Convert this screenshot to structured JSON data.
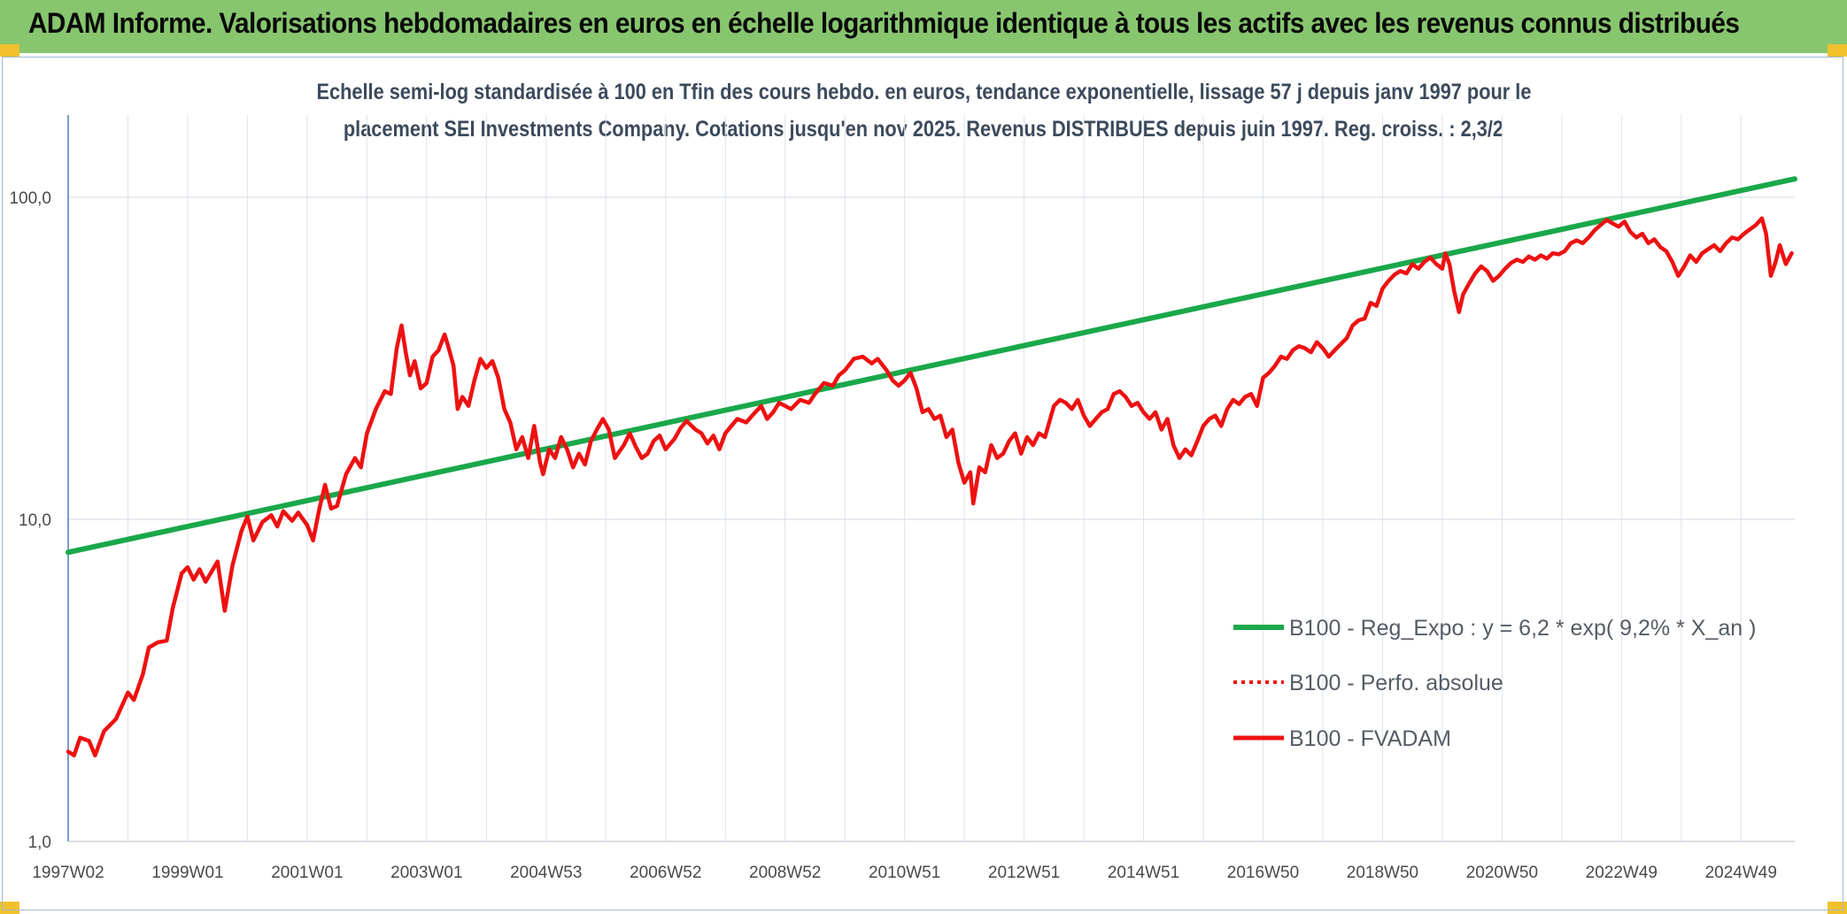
{
  "header": {
    "title": "ADAM Informe. Valorisations hebdomadaires en euros en échelle logarithmique identique à tous les actifs avec les revenus connus distribués"
  },
  "chart_data": {
    "type": "line",
    "title_line1": "Echelle semi-log standardisée à 100 en Tfin des cours hebdo. en euros, tendance exponentielle, lissage 57 j depuis janv 1997 pour le",
    "title_line2": "placement SEI Investments Company. Cotations jusqu'en nov 2025. Revenus DISTRIBUES depuis juin 1997. Reg. croiss. : 2,3/2",
    "y_scale": "log",
    "ylim": [
      1,
      180
    ],
    "xlim": [
      1997.0,
      2025.9
    ],
    "grid": true,
    "legend_position": "right",
    "x_tick_labels": [
      {
        "label": "1997W02",
        "year": 1997.0
      },
      {
        "label": "1999W01",
        "year": 1999.0
      },
      {
        "label": "2001W01",
        "year": 2001.0
      },
      {
        "label": "2003W01",
        "year": 2003.0
      },
      {
        "label": "2004W53",
        "year": 2005.0
      },
      {
        "label": "2006W52",
        "year": 2007.0
      },
      {
        "label": "2008W52",
        "year": 2009.0
      },
      {
        "label": "2010W51",
        "year": 2011.0
      },
      {
        "label": "2012W51",
        "year": 2013.0
      },
      {
        "label": "2014W51",
        "year": 2015.0
      },
      {
        "label": "2016W50",
        "year": 2017.0
      },
      {
        "label": "2018W50",
        "year": 2019.0
      },
      {
        "label": "2020W50",
        "year": 2021.0
      },
      {
        "label": "2022W49",
        "year": 2023.0
      },
      {
        "label": "2024W49",
        "year": 2025.0
      }
    ],
    "y_tick_labels": [
      {
        "label": "1,0",
        "value": 1
      },
      {
        "label": "10,0",
        "value": 10
      },
      {
        "label": "100,0",
        "value": 100
      }
    ],
    "series": [
      {
        "name": "B100 - Reg_Expo : y = 6,2 * exp( 9,2% *  X_an )",
        "color": "#1aa84a",
        "style": "solid",
        "points": [
          [
            1997.0,
            7.9
          ],
          [
            2025.9,
            114
          ]
        ]
      },
      {
        "name": "B100 - Perfo. absolue",
        "color": "#ee1111",
        "style": "dotted",
        "points": []
      },
      {
        "name": "B100 - FVADAM",
        "color": "#ee1111",
        "style": "solid",
        "points": [
          [
            1997.0,
            1.9
          ],
          [
            1997.1,
            1.85
          ],
          [
            1997.2,
            2.1
          ],
          [
            1997.35,
            2.05
          ],
          [
            1997.45,
            1.85
          ],
          [
            1997.6,
            2.2
          ],
          [
            1997.8,
            2.4
          ],
          [
            1998.0,
            2.9
          ],
          [
            1998.1,
            2.75
          ],
          [
            1998.25,
            3.3
          ],
          [
            1998.35,
            4.0
          ],
          [
            1998.5,
            4.15
          ],
          [
            1998.65,
            4.2
          ],
          [
            1998.75,
            5.3
          ],
          [
            1998.9,
            6.8
          ],
          [
            1999.0,
            7.1
          ],
          [
            1999.1,
            6.5
          ],
          [
            1999.2,
            7.0
          ],
          [
            1999.3,
            6.4
          ],
          [
            1999.5,
            7.4
          ],
          [
            1999.62,
            5.2
          ],
          [
            1999.75,
            7.2
          ],
          [
            1999.9,
            9.2
          ],
          [
            2000.0,
            10.2
          ],
          [
            2000.1,
            8.6
          ],
          [
            2000.25,
            9.8
          ],
          [
            2000.4,
            10.3
          ],
          [
            2000.5,
            9.5
          ],
          [
            2000.6,
            10.6
          ],
          [
            2000.75,
            9.9
          ],
          [
            2000.85,
            10.5
          ],
          [
            2001.0,
            9.6
          ],
          [
            2001.1,
            8.6
          ],
          [
            2001.2,
            10.7
          ],
          [
            2001.3,
            12.8
          ],
          [
            2001.4,
            10.8
          ],
          [
            2001.5,
            11.0
          ],
          [
            2001.65,
            13.8
          ],
          [
            2001.8,
            15.5
          ],
          [
            2001.9,
            14.5
          ],
          [
            2002.0,
            18.5
          ],
          [
            2002.15,
            22.0
          ],
          [
            2002.3,
            25.0
          ],
          [
            2002.4,
            24.5
          ],
          [
            2002.5,
            34.0
          ],
          [
            2002.58,
            40.0
          ],
          [
            2002.65,
            33.0
          ],
          [
            2002.72,
            28.0
          ],
          [
            2002.8,
            31.0
          ],
          [
            2002.9,
            25.5
          ],
          [
            2003.0,
            26.5
          ],
          [
            2003.1,
            32.0
          ],
          [
            2003.2,
            33.5
          ],
          [
            2003.3,
            37.5
          ],
          [
            2003.35,
            35.0
          ],
          [
            2003.45,
            30.0
          ],
          [
            2003.52,
            22.0
          ],
          [
            2003.6,
            24.0
          ],
          [
            2003.7,
            22.5
          ],
          [
            2003.8,
            27.0
          ],
          [
            2003.9,
            31.5
          ],
          [
            2004.0,
            29.5
          ],
          [
            2004.1,
            31.0
          ],
          [
            2004.2,
            27.5
          ],
          [
            2004.3,
            22.0
          ],
          [
            2004.4,
            20.0
          ],
          [
            2004.5,
            16.5
          ],
          [
            2004.6,
            18.0
          ],
          [
            2004.7,
            15.5
          ],
          [
            2004.8,
            19.5
          ],
          [
            2004.9,
            15.0
          ],
          [
            2004.95,
            13.8
          ],
          [
            2005.05,
            16.5
          ],
          [
            2005.15,
            15.5
          ],
          [
            2005.25,
            18.0
          ],
          [
            2005.35,
            16.5
          ],
          [
            2005.45,
            14.5
          ],
          [
            2005.55,
            16.0
          ],
          [
            2005.65,
            14.8
          ],
          [
            2005.75,
            17.5
          ],
          [
            2005.85,
            19.0
          ],
          [
            2005.95,
            20.5
          ],
          [
            2006.05,
            19.0
          ],
          [
            2006.15,
            15.5
          ],
          [
            2006.3,
            17.0
          ],
          [
            2006.4,
            18.5
          ],
          [
            2006.5,
            16.8
          ],
          [
            2006.6,
            15.5
          ],
          [
            2006.7,
            16.0
          ],
          [
            2006.8,
            17.5
          ],
          [
            2006.9,
            18.2
          ],
          [
            2007.0,
            16.5
          ],
          [
            2007.15,
            17.8
          ],
          [
            2007.25,
            19.2
          ],
          [
            2007.35,
            20.2
          ],
          [
            2007.5,
            19.0
          ],
          [
            2007.6,
            18.5
          ],
          [
            2007.7,
            17.2
          ],
          [
            2007.8,
            18.2
          ],
          [
            2007.9,
            16.5
          ],
          [
            2008.0,
            18.5
          ],
          [
            2008.1,
            19.5
          ],
          [
            2008.2,
            20.5
          ],
          [
            2008.35,
            20.0
          ],
          [
            2008.5,
            21.5
          ],
          [
            2008.6,
            22.5
          ],
          [
            2008.7,
            20.5
          ],
          [
            2008.8,
            21.5
          ],
          [
            2008.9,
            23.0
          ],
          [
            2009.0,
            22.5
          ],
          [
            2009.1,
            22.0
          ],
          [
            2009.25,
            23.5
          ],
          [
            2009.4,
            23.0
          ],
          [
            2009.5,
            24.5
          ],
          [
            2009.65,
            26.5
          ],
          [
            2009.8,
            26.0
          ],
          [
            2009.9,
            28.0
          ],
          [
            2010.0,
            29.0
          ],
          [
            2010.15,
            31.5
          ],
          [
            2010.3,
            32.0
          ],
          [
            2010.45,
            30.5
          ],
          [
            2010.55,
            31.5
          ],
          [
            2010.7,
            29.0
          ],
          [
            2010.8,
            27.0
          ],
          [
            2010.9,
            26.0
          ],
          [
            2011.0,
            27.0
          ],
          [
            2011.1,
            28.5
          ],
          [
            2011.2,
            25.5
          ],
          [
            2011.3,
            21.5
          ],
          [
            2011.4,
            22.0
          ],
          [
            2011.5,
            20.5
          ],
          [
            2011.6,
            21.0
          ],
          [
            2011.7,
            18.0
          ],
          [
            2011.8,
            19.0
          ],
          [
            2011.9,
            15.0
          ],
          [
            2012.0,
            13.0
          ],
          [
            2012.1,
            14.0
          ],
          [
            2012.15,
            11.2
          ],
          [
            2012.25,
            14.5
          ],
          [
            2012.35,
            14.0
          ],
          [
            2012.45,
            17.0
          ],
          [
            2012.55,
            15.5
          ],
          [
            2012.65,
            16.0
          ],
          [
            2012.75,
            17.5
          ],
          [
            2012.85,
            18.5
          ],
          [
            2012.95,
            16.0
          ],
          [
            2013.05,
            18.0
          ],
          [
            2013.15,
            17.0
          ],
          [
            2013.25,
            18.5
          ],
          [
            2013.35,
            18.0
          ],
          [
            2013.5,
            22.5
          ],
          [
            2013.6,
            23.5
          ],
          [
            2013.7,
            23.0
          ],
          [
            2013.8,
            22.0
          ],
          [
            2013.9,
            23.5
          ],
          [
            2014.0,
            21.0
          ],
          [
            2014.1,
            19.5
          ],
          [
            2014.2,
            20.5
          ],
          [
            2014.3,
            21.5
          ],
          [
            2014.4,
            22.0
          ],
          [
            2014.5,
            24.5
          ],
          [
            2014.6,
            25.0
          ],
          [
            2014.7,
            24.0
          ],
          [
            2014.8,
            22.5
          ],
          [
            2014.9,
            23.0
          ],
          [
            2015.0,
            21.5
          ],
          [
            2015.1,
            20.5
          ],
          [
            2015.2,
            21.5
          ],
          [
            2015.3,
            19.0
          ],
          [
            2015.4,
            20.5
          ],
          [
            2015.5,
            17.0
          ],
          [
            2015.6,
            15.5
          ],
          [
            2015.7,
            16.5
          ],
          [
            2015.8,
            15.8
          ],
          [
            2015.9,
            17.5
          ],
          [
            2016.0,
            19.5
          ],
          [
            2016.1,
            20.5
          ],
          [
            2016.2,
            21.0
          ],
          [
            2016.3,
            19.5
          ],
          [
            2016.4,
            22.0
          ],
          [
            2016.5,
            23.5
          ],
          [
            2016.6,
            22.8
          ],
          [
            2016.7,
            24.0
          ],
          [
            2016.8,
            24.5
          ],
          [
            2016.9,
            22.5
          ],
          [
            2017.0,
            27.5
          ],
          [
            2017.1,
            28.5
          ],
          [
            2017.2,
            30.0
          ],
          [
            2017.3,
            32.0
          ],
          [
            2017.4,
            31.5
          ],
          [
            2017.5,
            33.5
          ],
          [
            2017.6,
            34.5
          ],
          [
            2017.7,
            34.0
          ],
          [
            2017.8,
            33.0
          ],
          [
            2017.9,
            35.5
          ],
          [
            2018.0,
            34.0
          ],
          [
            2018.1,
            32.0
          ],
          [
            2018.2,
            33.5
          ],
          [
            2018.3,
            35.0
          ],
          [
            2018.4,
            36.5
          ],
          [
            2018.5,
            40.0
          ],
          [
            2018.6,
            41.5
          ],
          [
            2018.7,
            42.0
          ],
          [
            2018.8,
            47.0
          ],
          [
            2018.9,
            46.0
          ],
          [
            2019.0,
            52.0
          ],
          [
            2019.1,
            55.0
          ],
          [
            2019.2,
            57.5
          ],
          [
            2019.3,
            59.0
          ],
          [
            2019.4,
            58.0
          ],
          [
            2019.5,
            62.0
          ],
          [
            2019.6,
            60.0
          ],
          [
            2019.7,
            63.0
          ],
          [
            2019.8,
            65.0
          ],
          [
            2019.9,
            62.0
          ],
          [
            2020.0,
            60.0
          ],
          [
            2020.05,
            67.0
          ],
          [
            2020.12,
            62.0
          ],
          [
            2020.2,
            51.0
          ],
          [
            2020.28,
            44.0
          ],
          [
            2020.35,
            50.0
          ],
          [
            2020.45,
            54.0
          ],
          [
            2020.55,
            58.0
          ],
          [
            2020.65,
            61.0
          ],
          [
            2020.75,
            59.0
          ],
          [
            2020.85,
            55.0
          ],
          [
            2020.95,
            57.0
          ],
          [
            2021.05,
            60.0
          ],
          [
            2021.15,
            62.5
          ],
          [
            2021.25,
            64.0
          ],
          [
            2021.35,
            63.0
          ],
          [
            2021.45,
            65.5
          ],
          [
            2021.55,
            64.0
          ],
          [
            2021.65,
            66.0
          ],
          [
            2021.75,
            64.5
          ],
          [
            2021.85,
            67.0
          ],
          [
            2021.95,
            66.5
          ],
          [
            2022.05,
            68.0
          ],
          [
            2022.15,
            72.0
          ],
          [
            2022.25,
            73.5
          ],
          [
            2022.35,
            72.0
          ],
          [
            2022.45,
            75.0
          ],
          [
            2022.55,
            79.0
          ],
          [
            2022.65,
            82.0
          ],
          [
            2022.75,
            85.0
          ],
          [
            2022.85,
            83.0
          ],
          [
            2022.95,
            81.0
          ],
          [
            2023.05,
            84.0
          ],
          [
            2023.15,
            78.0
          ],
          [
            2023.25,
            75.0
          ],
          [
            2023.35,
            77.0
          ],
          [
            2023.45,
            72.0
          ],
          [
            2023.55,
            74.0
          ],
          [
            2023.65,
            70.0
          ],
          [
            2023.75,
            68.0
          ],
          [
            2023.85,
            63.0
          ],
          [
            2023.95,
            57.0
          ],
          [
            2024.05,
            61.0
          ],
          [
            2024.15,
            66.0
          ],
          [
            2024.25,
            63.0
          ],
          [
            2024.35,
            67.0
          ],
          [
            2024.45,
            69.0
          ],
          [
            2024.55,
            71.0
          ],
          [
            2024.65,
            68.0
          ],
          [
            2024.75,
            72.0
          ],
          [
            2024.85,
            75.0
          ],
          [
            2024.95,
            74.0
          ],
          [
            2025.05,
            77.0
          ],
          [
            2025.15,
            79.5
          ],
          [
            2025.25,
            82.0
          ],
          [
            2025.35,
            86.0
          ],
          [
            2025.42,
            77.0
          ],
          [
            2025.5,
            57.0
          ],
          [
            2025.58,
            63.0
          ],
          [
            2025.65,
            71.0
          ],
          [
            2025.75,
            62.0
          ],
          [
            2025.85,
            67.0
          ]
        ]
      }
    ]
  }
}
